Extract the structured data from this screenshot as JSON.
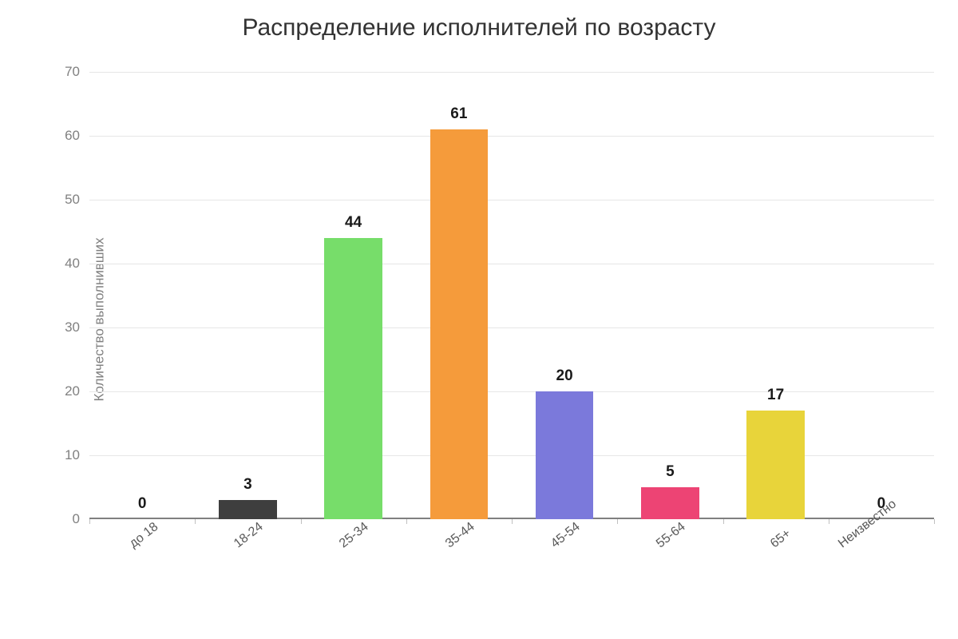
{
  "chart": {
    "type": "bar",
    "title": "Распределение исполнителей по возрасту",
    "title_fontsize": 30,
    "title_color": "#333333",
    "ylabel": "Количество выполнивших",
    "ylabel_fontsize": 17,
    "ylabel_color": "#808080",
    "background_color": "#ffffff",
    "grid_color": "#e6e6e6",
    "axis_color": "#808080",
    "value_label_fontsize": 19,
    "value_label_weight": 700,
    "value_label_color": "#1a1a1a",
    "xtick_label_fontsize": 16,
    "xtick_label_color": "#595959",
    "xtick_rotation_deg": -38,
    "ytick_label_fontsize": 17,
    "ytick_label_color": "#808080",
    "ylim": [
      0,
      70
    ],
    "yticks": [
      0,
      10,
      20,
      30,
      40,
      50,
      60,
      70
    ],
    "bar_width_ratio": 0.55,
    "categories": [
      "до 18",
      "18-24",
      "25-34",
      "35-44",
      "45-54",
      "55-64",
      "65+",
      "Неизвестно"
    ],
    "values": [
      0,
      3,
      44,
      61,
      20,
      5,
      17,
      0
    ],
    "bar_colors": [
      "#57c1f0",
      "#3e3e3e",
      "#77dd6a",
      "#f59b3b",
      "#7b79db",
      "#ed4474",
      "#e8d43a",
      "#8f9696"
    ]
  }
}
